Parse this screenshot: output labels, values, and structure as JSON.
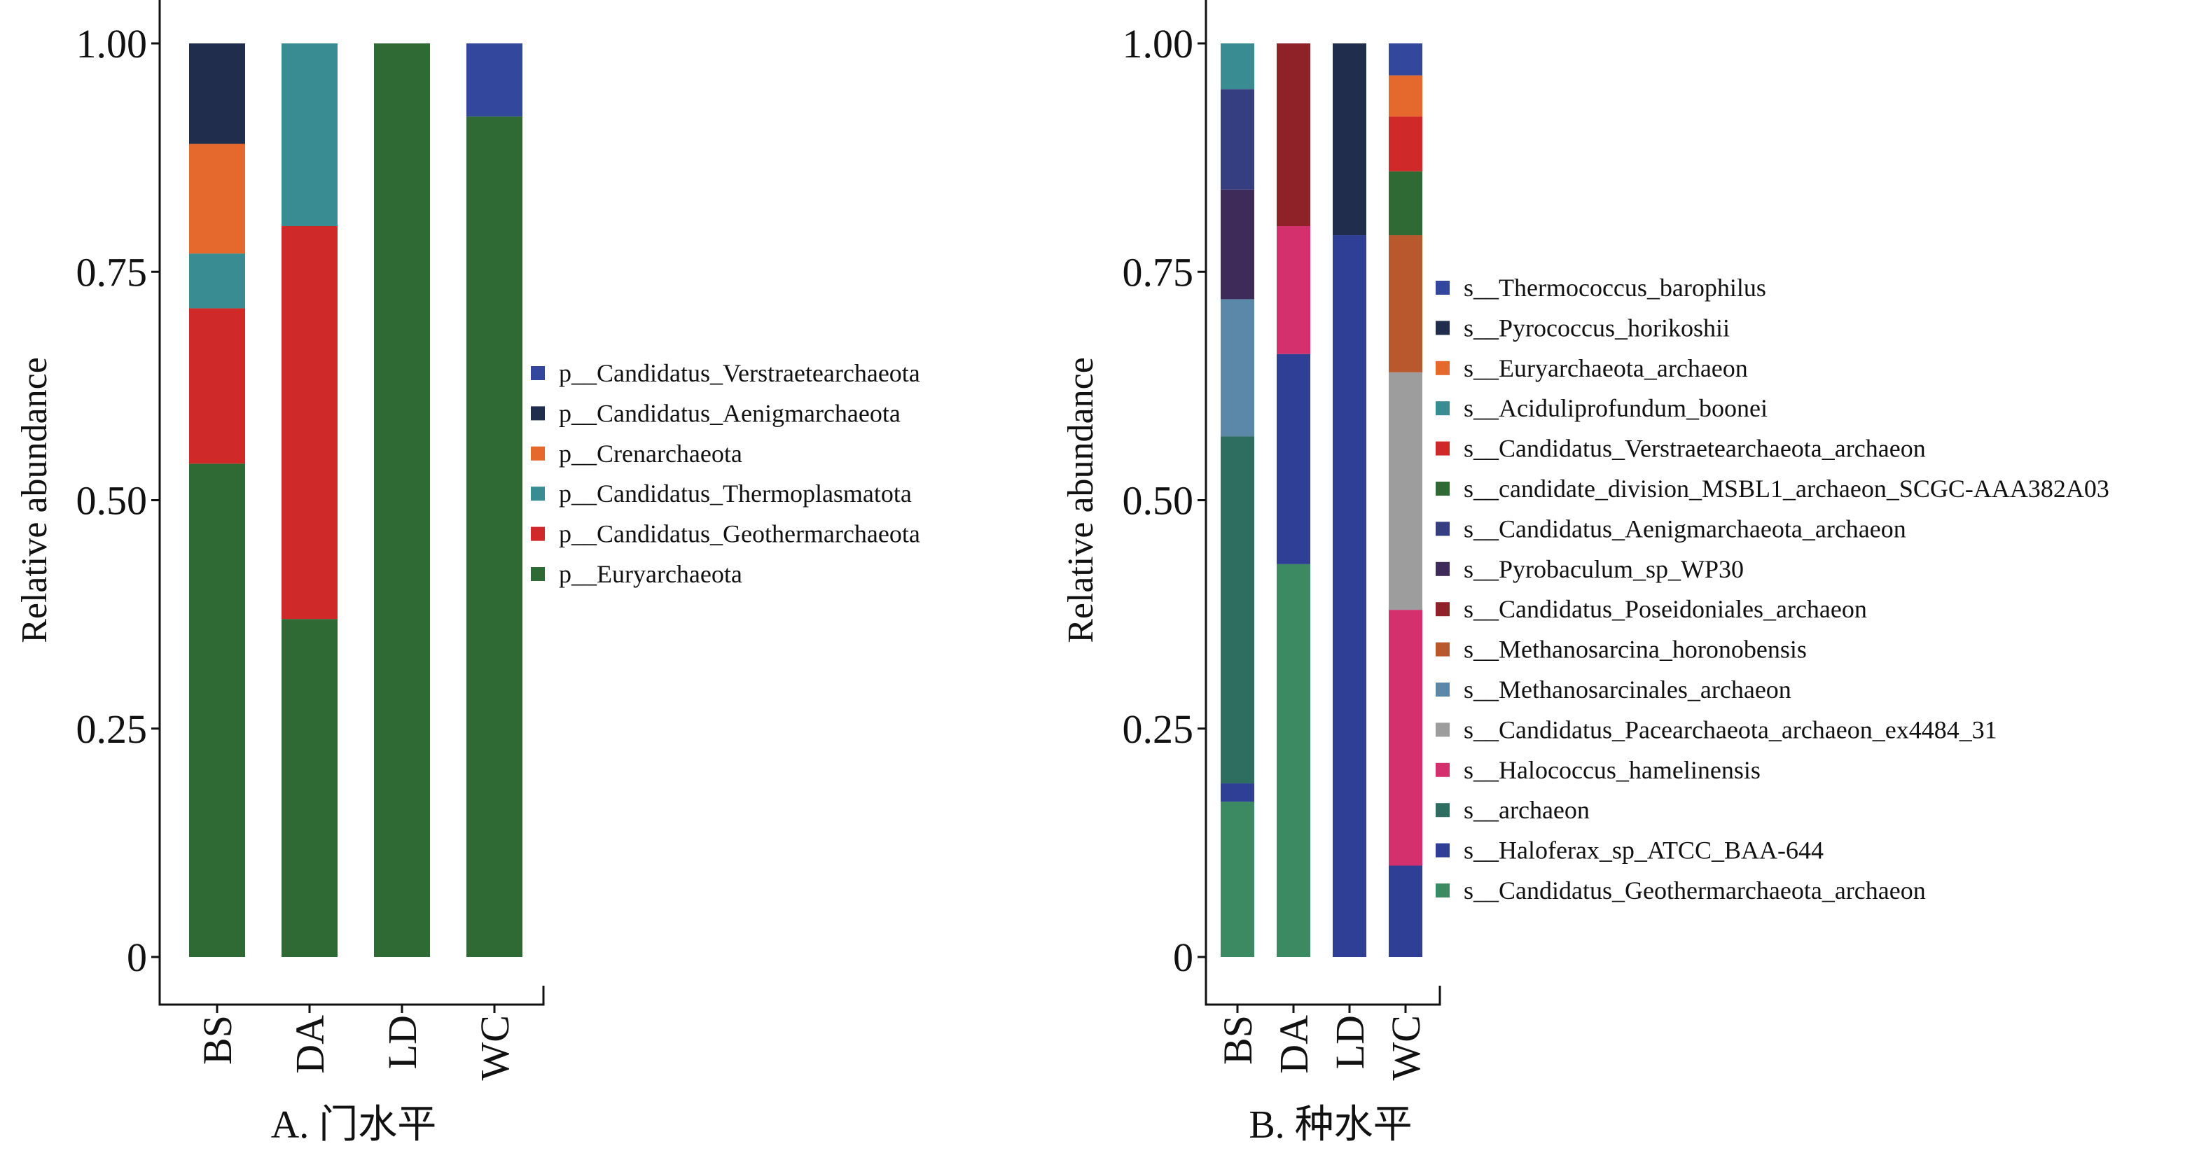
{
  "colors": {
    "euryarchaeota": "#2f6a35",
    "geothermarchaeota": "#cf2a29",
    "thermoplasmatota": "#3a8c93",
    "crenarchaeota": "#e5692c",
    "aenigmarchaeota_phylum": "#212d4c",
    "verstraetearchaeota_phylum": "#33489d",
    "thermococcus": "#33489d",
    "pyrococcus": "#212d4c",
    "euryarchaeota_archaeon": "#e5692c",
    "aciduliprofundum": "#3a8c93",
    "verstraetearchaeota_archaeon": "#cf2a29",
    "msbl1": "#2f6a35",
    "aenigmarchaeota_archaeon": "#343e80",
    "pyrobaculum": "#3e2b5a",
    "poseidoniales": "#8e2228",
    "methanosarcina": "#b9572d",
    "methanosarcinales": "#5b87a8",
    "pacearchaeota": "#9d9d9d",
    "halococcus": "#d5306e",
    "archaeon": "#2e6e60",
    "haloferax": "#2f3f96",
    "geothermarchaeota_archaeon": "#3b8a62"
  },
  "chart_data": [
    {
      "type": "bar",
      "stacked": true,
      "caption": "A. 门水平",
      "ylabel": "Relative abundance",
      "xlabel": "",
      "ylim": [
        0,
        1
      ],
      "yticks": [
        0,
        0.25,
        0.5,
        0.75,
        1.0
      ],
      "ytick_labels": [
        "0",
        "0.25",
        "0.50",
        "0.75",
        "1.00"
      ],
      "categories": [
        "BS",
        "DA",
        "LD",
        "WC"
      ],
      "legend_position": "right",
      "series": [
        {
          "name": "p__Euryarchaeota",
          "color_key": "euryarchaeota",
          "values": [
            0.54,
            0.37,
            1.0,
            0.92
          ]
        },
        {
          "name": "p__Candidatus_Geothermarchaeota",
          "color_key": "geothermarchaeota",
          "values": [
            0.17,
            0.43,
            0,
            0
          ]
        },
        {
          "name": "p__Candidatus_Thermoplasmatota",
          "color_key": "thermoplasmatota",
          "values": [
            0.06,
            0.2,
            0,
            0
          ]
        },
        {
          "name": "p__Crenarchaeota",
          "color_key": "crenarchaeota",
          "values": [
            0.12,
            0,
            0,
            0
          ]
        },
        {
          "name": "p__Candidatus_Aenigmarchaeota",
          "color_key": "aenigmarchaeota_phylum",
          "values": [
            0.11,
            0,
            0,
            0
          ]
        },
        {
          "name": "p__Candidatus_Verstraetearchaeota",
          "color_key": "verstraetearchaeota_phylum",
          "values": [
            0,
            0,
            0,
            0.08
          ]
        }
      ]
    },
    {
      "type": "bar",
      "stacked": true,
      "caption": "B. 种水平",
      "ylabel": "Relative abundance",
      "xlabel": "",
      "ylim": [
        0,
        1
      ],
      "yticks": [
        0,
        0.25,
        0.5,
        0.75,
        1.0
      ],
      "ytick_labels": [
        "0",
        "0.25",
        "0.50",
        "0.75",
        "1.00"
      ],
      "categories": [
        "BS",
        "DA",
        "LD",
        "WC"
      ],
      "legend_position": "right",
      "series": [
        {
          "name": "s__Candidatus_Geothermarchaeota_archaeon",
          "color_key": "geothermarchaeota_archaeon",
          "values": [
            0.17,
            0.43,
            0,
            0
          ]
        },
        {
          "name": "s__Haloferax_sp_ATCC_BAA-644",
          "color_key": "haloferax",
          "values": [
            0.02,
            0.23,
            0.79,
            0.1
          ]
        },
        {
          "name": "s__archaeon",
          "color_key": "archaeon",
          "values": [
            0.38,
            0,
            0,
            0
          ]
        },
        {
          "name": "s__Halococcus_hamelinensis",
          "color_key": "halococcus",
          "values": [
            0,
            0.14,
            0,
            0.28
          ]
        },
        {
          "name": "s__Candidatus_Pacearchaeota_archaeon_ex4484_31",
          "color_key": "pacearchaeota",
          "values": [
            0,
            0,
            0,
            0.26
          ]
        },
        {
          "name": "s__Methanosarcinales_archaeon",
          "color_key": "methanosarcinales",
          "values": [
            0.15,
            0,
            0,
            0
          ]
        },
        {
          "name": "s__Methanosarcina_horonobensis",
          "color_key": "methanosarcina",
          "values": [
            0,
            0,
            0,
            0.15
          ]
        },
        {
          "name": "s__Candidatus_Poseidoniales_archaeon",
          "color_key": "poseidoniales",
          "values": [
            0,
            0.2,
            0,
            0
          ]
        },
        {
          "name": "s__Pyrobaculum_sp_WP30",
          "color_key": "pyrobaculum",
          "values": [
            0.12,
            0,
            0,
            0
          ]
        },
        {
          "name": "s__Candidatus_Aenigmarchaeota_archaeon",
          "color_key": "aenigmarchaeota_archaeon",
          "values": [
            0.11,
            0,
            0,
            0
          ]
        },
        {
          "name": "s__candidate_division_MSBL1_archaeon_SCGC-AAA382A03",
          "color_key": "msbl1",
          "values": [
            0,
            0,
            0,
            0.07
          ]
        },
        {
          "name": "s__Candidatus_Verstraetearchaeota_archaeon",
          "color_key": "verstraetearchaeota_archaeon",
          "values": [
            0,
            0,
            0,
            0.06
          ]
        },
        {
          "name": "s__Aciduliprofundum_boonei",
          "color_key": "aciduliprofundum",
          "values": [
            0.05,
            0,
            0,
            0
          ]
        },
        {
          "name": "s__Euryarchaeota_archaeon",
          "color_key": "euryarchaeota_archaeon",
          "values": [
            0,
            0,
            0,
            0.045
          ]
        },
        {
          "name": "s__Pyrococcus_horikoshii",
          "color_key": "pyrococcus",
          "values": [
            0,
            0,
            0.21,
            0
          ]
        },
        {
          "name": "s__Thermococcus_barophilus",
          "color_key": "thermococcus",
          "values": [
            0,
            0,
            0,
            0.035
          ]
        }
      ]
    }
  ]
}
